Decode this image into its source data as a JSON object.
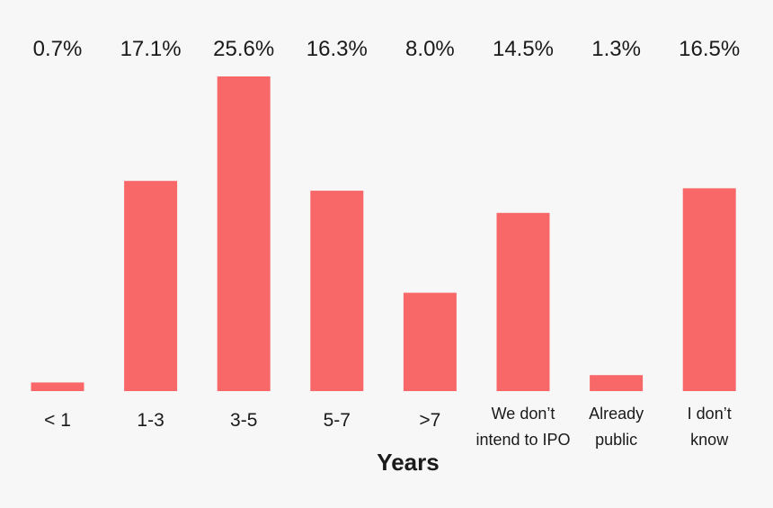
{
  "chart_data": {
    "type": "bar",
    "title": "",
    "xlabel": "Years",
    "ylabel": "",
    "unit": "%",
    "bar_color": "#f96868",
    "background": "#f7f7f7",
    "grid": false,
    "ylim": [
      0,
      25.6
    ],
    "categories": [
      [
        "< 1"
      ],
      [
        "1-3"
      ],
      [
        "3-5"
      ],
      [
        "5-7"
      ],
      [
        ">7"
      ],
      [
        "We don’t",
        "intend to IPO"
      ],
      [
        "Already",
        "public"
      ],
      [
        "I don’t",
        "know"
      ]
    ],
    "values": [
      0.7,
      17.1,
      25.6,
      16.3,
      8.0,
      14.5,
      1.3,
      16.5
    ],
    "value_labels": [
      "0.7%",
      "17.1%",
      "25.6%",
      "16.3%",
      "8.0%",
      "14.5%",
      "1.3%",
      "16.5%"
    ]
  }
}
